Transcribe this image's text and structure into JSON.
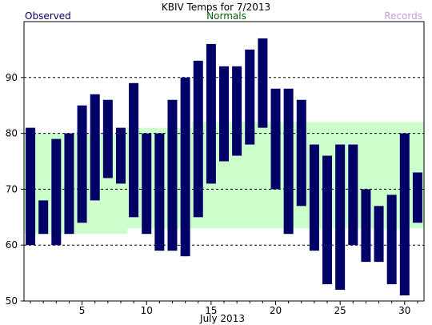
{
  "chart_data": {
    "type": "bar",
    "title": "KBIV Temps for 7/2013",
    "xlabel": "July 2013",
    "legend": {
      "observed": "Observed",
      "normals": "Normals",
      "records": "Records"
    },
    "colors": {
      "observed": "#000066",
      "normals_band": "#ccffcc",
      "normals_text": "#006600",
      "records_text": "#cc99dd",
      "title": "#000000"
    },
    "x": [
      1,
      2,
      3,
      4,
      5,
      6,
      7,
      8,
      9,
      10,
      11,
      12,
      13,
      14,
      15,
      16,
      17,
      18,
      19,
      20,
      21,
      22,
      23,
      24,
      25,
      26,
      27,
      28,
      29,
      30,
      31
    ],
    "xlim": [
      0.5,
      31.5
    ],
    "ylim": [
      50,
      100
    ],
    "grid": true,
    "yticks": [
      50,
      60,
      70,
      80,
      90
    ],
    "xticks": [
      5,
      10,
      15,
      20,
      25,
      30
    ],
    "series": [
      {
        "name": "Observed",
        "high": [
          81,
          68,
          79,
          80,
          85,
          87,
          86,
          81,
          89,
          80,
          80,
          86,
          90,
          93,
          96,
          92,
          92,
          95,
          97,
          88,
          88,
          86,
          78,
          76,
          78,
          78,
          70,
          67,
          69,
          80,
          73
        ],
        "low": [
          60,
          62,
          60,
          62,
          64,
          68,
          72,
          71,
          65,
          62,
          59,
          59,
          58,
          65,
          71,
          75,
          76,
          78,
          81,
          70,
          62,
          67,
          59,
          53,
          52,
          60,
          57,
          57,
          53,
          51,
          64
        ]
      },
      {
        "name": "Normals",
        "high": [
          80,
          80,
          80,
          80,
          80,
          80,
          80,
          80,
          81,
          81,
          81,
          81,
          81,
          82,
          82,
          82,
          82,
          82,
          82,
          82,
          82,
          82,
          82,
          82,
          82,
          82,
          82,
          82,
          82,
          82,
          82
        ],
        "low": [
          62,
          62,
          62,
          62,
          62,
          62,
          62,
          62,
          63,
          63,
          63,
          63,
          63,
          63,
          63,
          63,
          63,
          63,
          63,
          63,
          63,
          63,
          63,
          63,
          63,
          63,
          63,
          63,
          63,
          63,
          63
        ]
      }
    ]
  }
}
